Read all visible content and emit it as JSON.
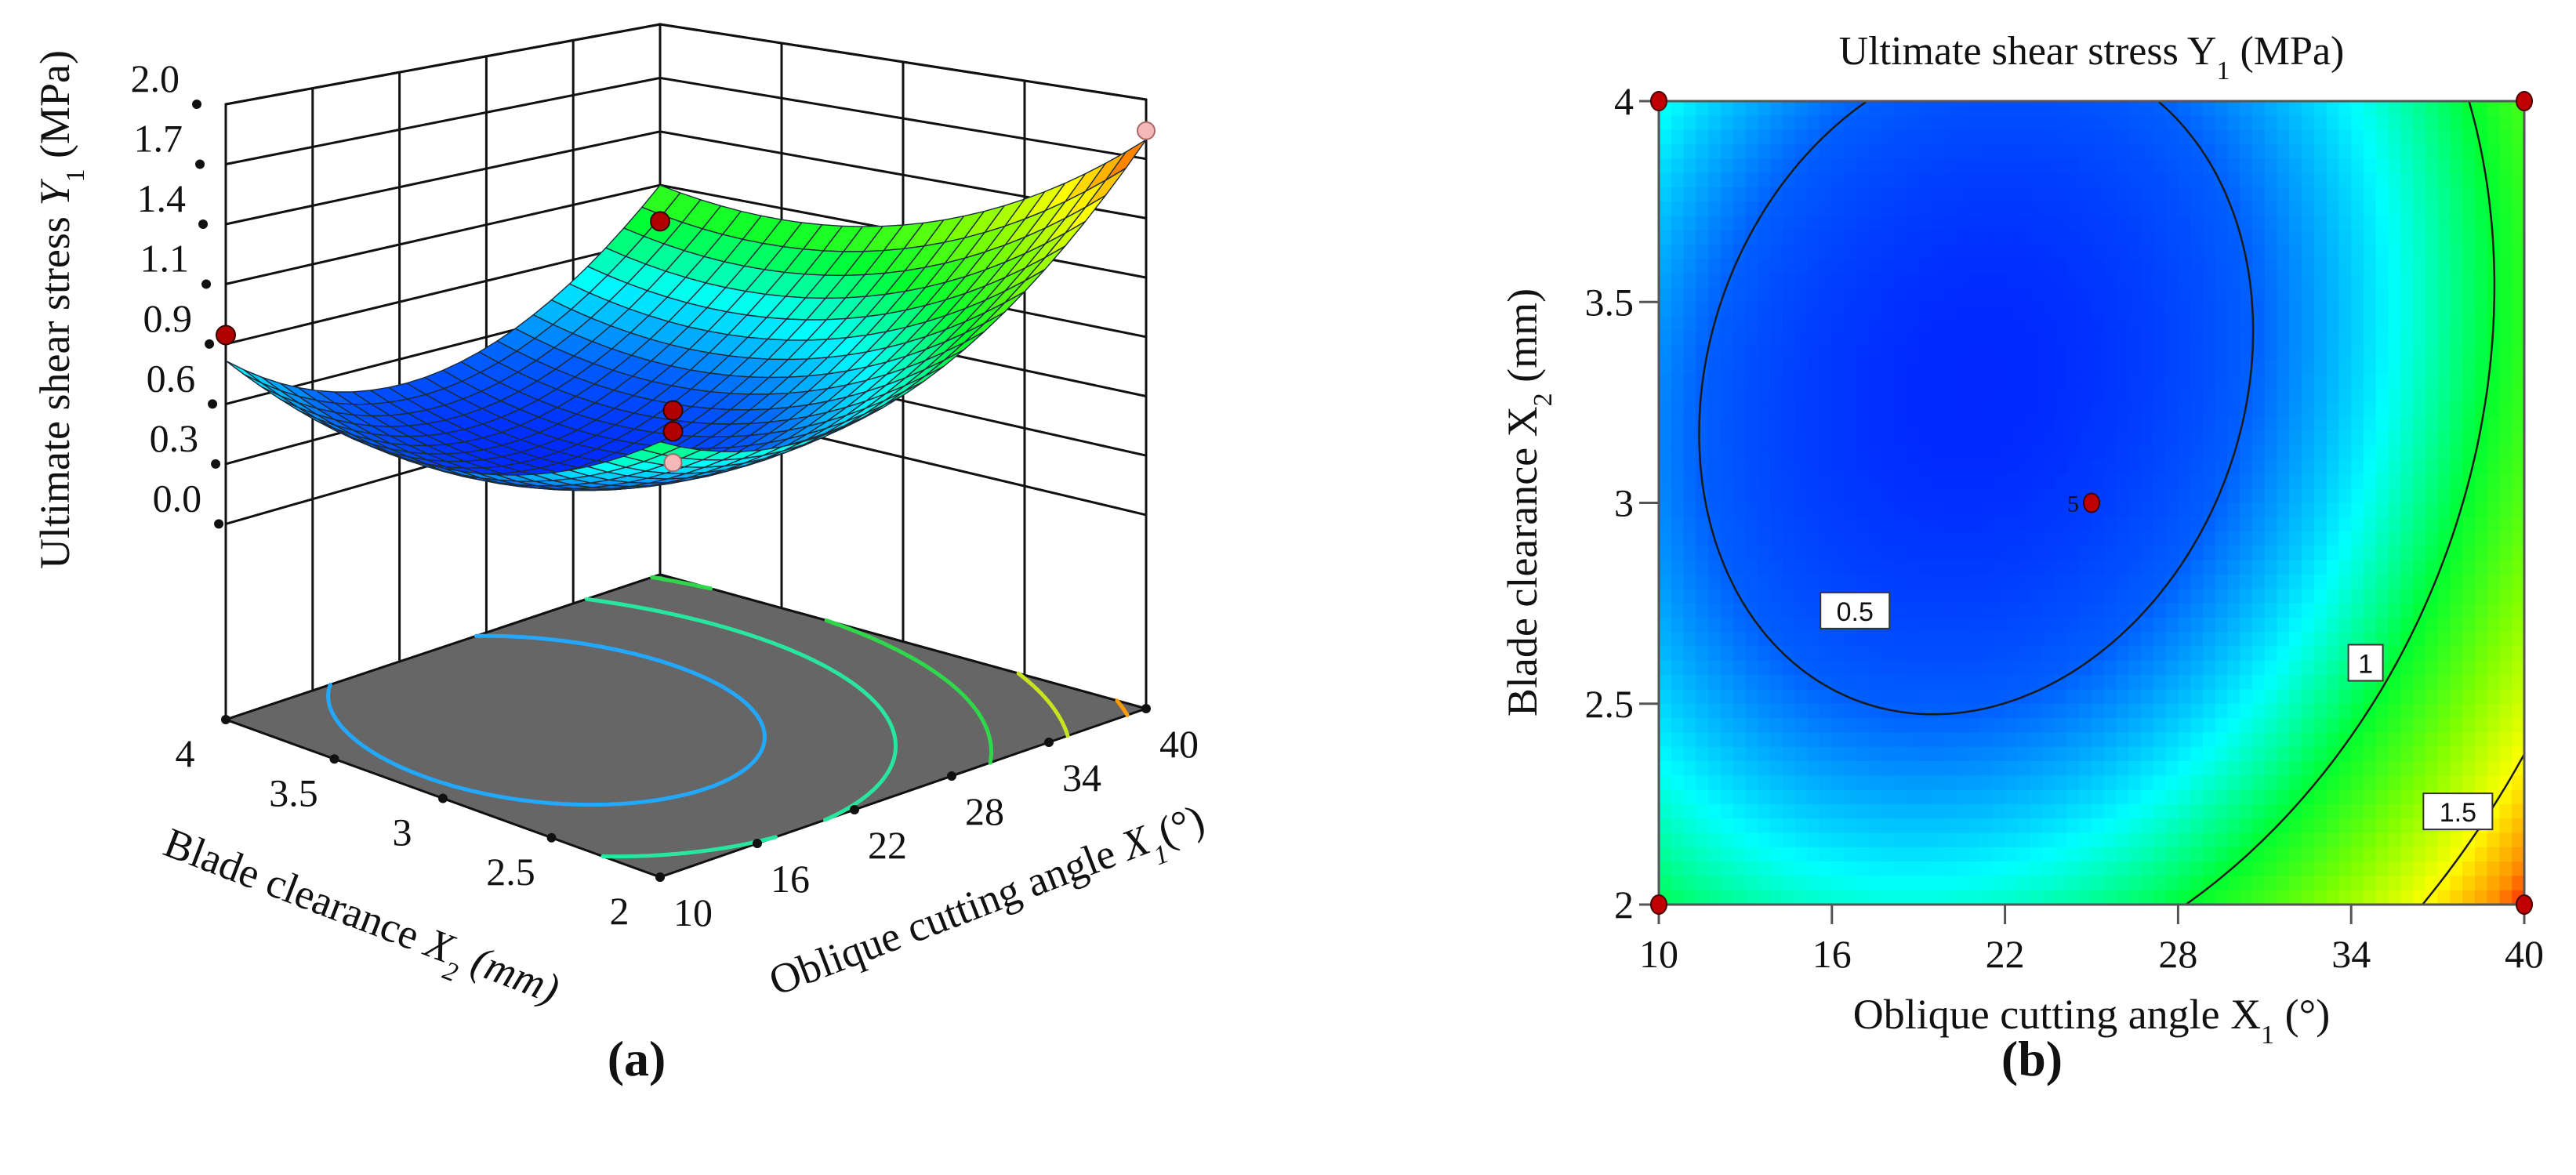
{
  "figure": {
    "panel_a_label": "(a)",
    "panel_b_label": "(b)"
  },
  "chart_data": [
    {
      "type": "surface3d",
      "panel": "a",
      "zlabel": {
        "pre": "Ultimate shear stress ",
        "var": "Y",
        "sub": "1",
        "post": " (MPa)"
      },
      "x1label": {
        "pre": "Oblique cutting angle ",
        "var": "X",
        "sub": "1",
        "post": "(°)"
      },
      "x2label": {
        "pre": "Blade clearance ",
        "var": "X",
        "sub": "2",
        "post": " (mm)"
      },
      "x1_range": [
        10,
        40
      ],
      "x2_range": [
        2,
        4
      ],
      "z_range": [
        0,
        2.0
      ],
      "x1_ticks": [
        "10",
        "16",
        "22",
        "28",
        "34",
        "40"
      ],
      "x2_ticks": [
        "2",
        "2.5",
        "3",
        "3.5",
        "4"
      ],
      "z_ticks": [
        "0.0",
        "0.3",
        "0.6",
        "0.9",
        "1.1",
        "1.4",
        "1.7",
        "2.0"
      ],
      "model": {
        "c0": 0.3,
        "a": 0.5,
        "b": 0.3,
        "c": -0.12,
        "x1_center": 21,
        "x1_scale": 15,
        "x2_center": 3.3,
        "x2_scale": 1
      },
      "design_points": [
        {
          "x1": 10,
          "x2": 4,
          "y": 0.9
        },
        {
          "x1": 40,
          "x2": 4,
          "y": 0.95
        },
        {
          "x1": 25,
          "x2": 3,
          "y": 0.55
        },
        {
          "x1": 25,
          "x2": 3,
          "y": 0.45
        }
      ],
      "design_points_below_surface": [
        {
          "x1": 25,
          "x2": 3,
          "y": 0.3
        },
        {
          "x1": 40,
          "x2": 2,
          "y": 1.85
        }
      ],
      "floor_contours": [
        {
          "level": 0.5,
          "color": "#22a8ff"
        },
        {
          "level": 0.8,
          "color": "#28e6a0"
        },
        {
          "level": 1.1,
          "color": "#2fd84a"
        },
        {
          "level": 1.4,
          "color": "#c8e41e"
        },
        {
          "level": 1.7,
          "color": "#ff9a00"
        }
      ],
      "colors": {
        "floor": "#666666",
        "point": "#b00000",
        "point_light": "#f4b8b8"
      }
    },
    {
      "type": "heatmap",
      "panel": "b",
      "title": {
        "pre": "Ultimate shear stress Y",
        "sub": "1",
        "post": " (MPa)"
      },
      "xlabel": {
        "pre": "Oblique cutting angle X",
        "sub": "1",
        "post": " (°)"
      },
      "ylabel": {
        "pre": "Blade clearance X",
        "sub": "2",
        "post": " (mm)"
      },
      "x_range": [
        10,
        40
      ],
      "y_range": [
        2,
        4
      ],
      "x_ticks": [
        "10",
        "16",
        "22",
        "28",
        "34",
        "40"
      ],
      "y_ticks": [
        "2",
        "2.5",
        "3",
        "3.5",
        "4"
      ],
      "contour_levels": [
        0.5,
        1.0,
        1.5
      ],
      "contour_labels": [
        {
          "text": "0.5",
          "x1": 16.8,
          "x2": 2.73
        },
        {
          "text": "1",
          "x1": 34.5,
          "x2": 2.6
        },
        {
          "text": "1.5",
          "x1": 37.7,
          "x2": 2.23
        }
      ],
      "design_points": [
        {
          "x1": 10,
          "x2": 2,
          "label": ""
        },
        {
          "x1": 10,
          "x2": 4,
          "label": ""
        },
        {
          "x1": 40,
          "x2": 2,
          "label": ""
        },
        {
          "x1": 40,
          "x2": 4,
          "label": ""
        },
        {
          "x1": 25,
          "x2": 3,
          "label": "5"
        }
      ],
      "colormap": [
        [
          0.3,
          "#0028ff"
        ],
        [
          0.5,
          "#0060ff"
        ],
        [
          0.75,
          "#00ffff"
        ],
        [
          1.0,
          "#00ff30"
        ],
        [
          1.25,
          "#80ff00"
        ],
        [
          1.5,
          "#ffff00"
        ],
        [
          1.7,
          "#ff9000"
        ],
        [
          1.85,
          "#ff0000"
        ]
      ]
    }
  ]
}
